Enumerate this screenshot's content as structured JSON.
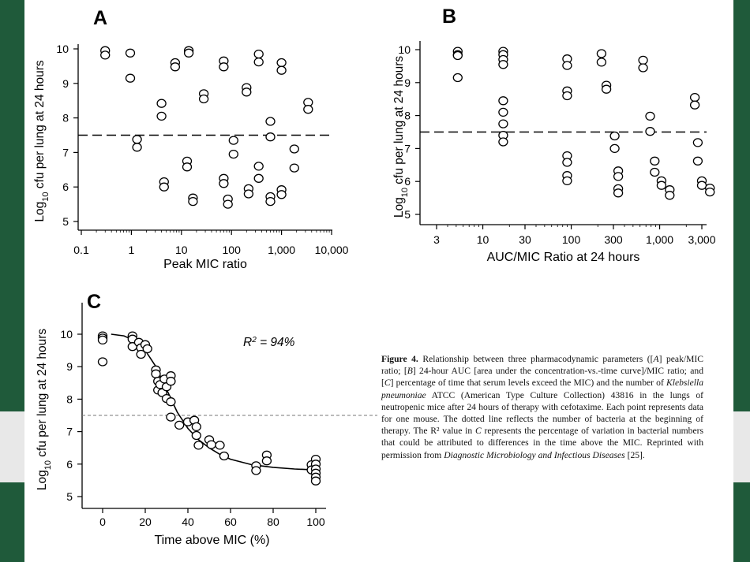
{
  "colors": {
    "background": "#1f5a3a",
    "panel": "#ffffff",
    "ink": "#000000"
  },
  "chart_data": [
    {
      "panel_label": "A",
      "type": "scatter",
      "xscale": "log",
      "xlim": [
        0.1,
        10000
      ],
      "ylim": [
        5,
        10.5
      ],
      "xticks": [
        "0.1",
        "1",
        "10",
        "100",
        "1,000",
        "10,000"
      ],
      "yticks": [
        "5",
        "6",
        "7",
        "8",
        "9",
        "10"
      ],
      "xlabel": "Peak MIC ratio",
      "ylabel": "Log10 cfu per lung at 24 hours",
      "reference_line": 7.5,
      "points": [
        [
          0.3,
          9.95
        ],
        [
          0.3,
          9.82
        ],
        [
          0.95,
          9.88
        ],
        [
          0.95,
          9.15
        ],
        [
          1.3,
          7.38
        ],
        [
          1.3,
          7.15
        ],
        [
          4,
          8.42
        ],
        [
          4,
          8.05
        ],
        [
          4.5,
          6.15
        ],
        [
          4.5,
          6.0
        ],
        [
          7.5,
          9.6
        ],
        [
          7.5,
          9.48
        ],
        [
          14,
          9.95
        ],
        [
          14,
          9.88
        ],
        [
          13,
          6.75
        ],
        [
          13,
          6.58
        ],
        [
          17,
          5.68
        ],
        [
          17,
          5.58
        ],
        [
          28,
          8.7
        ],
        [
          28,
          8.55
        ],
        [
          70,
          9.65
        ],
        [
          70,
          9.48
        ],
        [
          70,
          6.25
        ],
        [
          70,
          6.1
        ],
        [
          85,
          5.65
        ],
        [
          85,
          5.5
        ],
        [
          110,
          7.35
        ],
        [
          110,
          6.95
        ],
        [
          200,
          8.88
        ],
        [
          200,
          8.75
        ],
        [
          220,
          5.95
        ],
        [
          220,
          5.8
        ],
        [
          350,
          9.85
        ],
        [
          350,
          9.62
        ],
        [
          350,
          6.6
        ],
        [
          350,
          6.25
        ],
        [
          600,
          7.9
        ],
        [
          600,
          7.45
        ],
        [
          600,
          5.72
        ],
        [
          600,
          5.58
        ],
        [
          1000,
          9.6
        ],
        [
          1000,
          9.38
        ],
        [
          1000,
          5.92
        ],
        [
          1000,
          5.78
        ],
        [
          1800,
          7.1
        ],
        [
          1800,
          6.55
        ],
        [
          3400,
          8.45
        ],
        [
          3400,
          8.25
        ]
      ]
    },
    {
      "panel_label": "B",
      "type": "scatter",
      "xscale": "log",
      "xlim": [
        3,
        6000
      ],
      "ylim": [
        5,
        10.3
      ],
      "xticks": [
        "3",
        "10",
        "30",
        "100",
        "300",
        "1,000",
        "3,000"
      ],
      "yticks": [
        "5",
        "6",
        "7",
        "8",
        "9",
        "10"
      ],
      "xlabel": "AUC/MIC Ratio at 24 hours",
      "ylabel": "Log10 cfu per lung at 24 hours",
      "reference_line": 7.5,
      "points": [
        [
          5.2,
          9.95
        ],
        [
          5.2,
          9.85
        ],
        [
          5.2,
          9.82
        ],
        [
          5.2,
          9.15
        ],
        [
          17,
          9.95
        ],
        [
          17,
          9.85
        ],
        [
          17,
          9.7
        ],
        [
          17,
          9.55
        ],
        [
          17,
          8.45
        ],
        [
          17,
          8.1
        ],
        [
          17,
          7.75
        ],
        [
          17,
          7.4
        ],
        [
          17,
          7.2
        ],
        [
          90,
          9.72
        ],
        [
          90,
          9.52
        ],
        [
          90,
          8.75
        ],
        [
          90,
          8.6
        ],
        [
          90,
          6.78
        ],
        [
          90,
          6.58
        ],
        [
          90,
          6.18
        ],
        [
          90,
          6.02
        ],
        [
          220,
          9.88
        ],
        [
          220,
          9.62
        ],
        [
          250,
          8.92
        ],
        [
          250,
          8.8
        ],
        [
          310,
          7.38
        ],
        [
          310,
          7.0
        ],
        [
          340,
          6.32
        ],
        [
          340,
          6.15
        ],
        [
          340,
          5.78
        ],
        [
          340,
          5.65
        ],
        [
          650,
          9.68
        ],
        [
          650,
          9.45
        ],
        [
          780,
          7.98
        ],
        [
          780,
          7.52
        ],
        [
          880,
          6.62
        ],
        [
          880,
          6.28
        ],
        [
          1050,
          6.02
        ],
        [
          1050,
          5.88
        ],
        [
          1300,
          5.75
        ],
        [
          1300,
          5.58
        ],
        [
          2500,
          8.55
        ],
        [
          2500,
          8.32
        ],
        [
          2700,
          7.18
        ],
        [
          2700,
          6.62
        ],
        [
          3000,
          6.02
        ],
        [
          3000,
          5.88
        ],
        [
          3700,
          5.8
        ],
        [
          3700,
          5.68
        ]
      ]
    },
    {
      "panel_label": "C",
      "type": "scatter",
      "xlim": [
        -5,
        107
      ],
      "ylim": [
        5,
        10.5
      ],
      "xticks": [
        "0",
        "20",
        "40",
        "60",
        "80",
        "100"
      ],
      "yticks": [
        "5",
        "6",
        "7",
        "8",
        "9",
        "10"
      ],
      "xlabel": "Time above MIC (%)",
      "ylabel": "Log10 cfu per lung at 24 hours",
      "reference_line": 7.5,
      "annotation": "R² = 94%",
      "fit_curve": [
        [
          4,
          10.0
        ],
        [
          10,
          9.95
        ],
        [
          15,
          9.8
        ],
        [
          20,
          9.5
        ],
        [
          25,
          9.0
        ],
        [
          30,
          8.3
        ],
        [
          35,
          7.6
        ],
        [
          40,
          7.1
        ],
        [
          45,
          6.75
        ],
        [
          50,
          6.5
        ],
        [
          55,
          6.3
        ],
        [
          60,
          6.15
        ],
        [
          70,
          5.98
        ],
        [
          80,
          5.9
        ],
        [
          90,
          5.85
        ],
        [
          100,
          5.82
        ]
      ],
      "points": [
        [
          0,
          9.95
        ],
        [
          0,
          9.88
        ],
        [
          0,
          9.82
        ],
        [
          0,
          9.15
        ],
        [
          14,
          9.95
        ],
        [
          14,
          9.85
        ],
        [
          14,
          9.62
        ],
        [
          17,
          9.75
        ],
        [
          18,
          9.58
        ],
        [
          18,
          9.38
        ],
        [
          20,
          9.68
        ],
        [
          21,
          9.55
        ],
        [
          25,
          8.9
        ],
        [
          25,
          8.78
        ],
        [
          26,
          8.55
        ],
        [
          26,
          8.28
        ],
        [
          27,
          8.45
        ],
        [
          28,
          8.2
        ],
        [
          29,
          8.62
        ],
        [
          30,
          8.38
        ],
        [
          30,
          8.02
        ],
        [
          32,
          8.72
        ],
        [
          32,
          8.55
        ],
        [
          32,
          7.92
        ],
        [
          32,
          7.45
        ],
        [
          36,
          7.2
        ],
        [
          40,
          7.3
        ],
        [
          43,
          7.35
        ],
        [
          44,
          7.15
        ],
        [
          44,
          6.88
        ],
        [
          45,
          6.58
        ],
        [
          50,
          6.75
        ],
        [
          51,
          6.6
        ],
        [
          55,
          6.58
        ],
        [
          57,
          6.25
        ],
        [
          72,
          5.95
        ],
        [
          72,
          5.8
        ],
        [
          77,
          6.28
        ],
        [
          77,
          6.1
        ],
        [
          98,
          5.98
        ],
        [
          98,
          5.82
        ],
        [
          100,
          6.15
        ],
        [
          100,
          6.0
        ],
        [
          100,
          5.85
        ],
        [
          100,
          5.72
        ],
        [
          100,
          5.6
        ],
        [
          100,
          5.48
        ]
      ]
    }
  ],
  "caption": {
    "figure": "Figure 4.",
    "segments": [
      {
        "t": " Relationship between three pharmacodynamic parameters ([",
        "i": false
      },
      {
        "t": "A",
        "i": true
      },
      {
        "t": "] peak/MIC ratio; [",
        "i": false
      },
      {
        "t": "B",
        "i": true
      },
      {
        "t": "] 24-hour AUC [area under the concentration-vs.-time curve]/MIC ratio; and [",
        "i": false
      },
      {
        "t": "C",
        "i": true
      },
      {
        "t": "] percentage of time that serum levels exceed the MIC) and the number of ",
        "i": false
      },
      {
        "t": "Klebsiella pneumoniae",
        "i": true
      },
      {
        "t": " ATCC (American Type Culture Collection) 43816 in the lungs of neutropenic mice after 24 hours of therapy with cefotaxime. Each point represents data for one mouse. The dotted line reflects the number of bacteria at the beginning of therapy. The R² value in ",
        "i": false
      },
      {
        "t": "C",
        "i": true
      },
      {
        "t": " represents the percentage of variation in bacterial numbers that could be attributed to differences in the time above the MIC. Reprinted with permission from ",
        "i": false
      },
      {
        "t": "Diagnostic Microbiology and Infectious Diseases",
        "i": true
      },
      {
        "t": " [25].",
        "i": false
      }
    ]
  }
}
